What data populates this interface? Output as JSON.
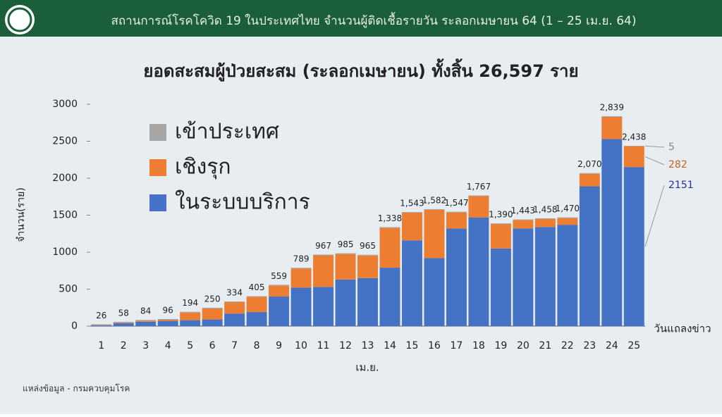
{
  "header": {
    "title": "สถานการณ์โรคโควิด 19 ในประเทศไทย จำนวนผู้ติดเชื้อรายวัน ระลอกเมษายน 64 (1 – 25 เม.ย. 64)"
  },
  "chart_data": {
    "type": "stacked-bar",
    "title": "ยอดสะสมผู้ป่วยสะสม (ระลอกเมษายน) ทั้งสิ้น 26,597 ราย",
    "y_label": "จำนวน(ราย)",
    "x_label": "เม.ย.",
    "x_end_label": "วันแถลงข่าว",
    "categories": [
      "1",
      "2",
      "3",
      "4",
      "5",
      "6",
      "7",
      "8",
      "9",
      "10",
      "11",
      "12",
      "13",
      "14",
      "15",
      "16",
      "17",
      "18",
      "19",
      "20",
      "21",
      "22",
      "23",
      "24",
      "25"
    ],
    "series": [
      {
        "name": "เข้าประเทศ",
        "color": "#a6a6a6",
        "values": [
          10,
          10,
          10,
          10,
          10,
          10,
          10,
          10,
          10,
          10,
          10,
          10,
          10,
          10,
          10,
          10,
          10,
          10,
          10,
          10,
          10,
          10,
          10,
          10,
          5
        ]
      },
      {
        "name": "เชิงรุก",
        "color": "#ed7d31",
        "values": [
          6,
          8,
          14,
          16,
          104,
          150,
          154,
          205,
          149,
          259,
          427,
          345,
          305,
          538,
          373,
          652,
          217,
          287,
          330,
          113,
          108,
          90,
          170,
          299,
          282
        ]
      },
      {
        "name": "ในระบบบริการ",
        "color": "#4472c4",
        "values": [
          10,
          40,
          60,
          70,
          80,
          90,
          170,
          190,
          400,
          520,
          530,
          630,
          650,
          790,
          1160,
          920,
          1320,
          1470,
          1050,
          1320,
          1340,
          1370,
          1890,
          2530,
          2151
        ]
      }
    ],
    "totals": {
      "values": [
        26,
        58,
        84,
        96,
        194,
        250,
        334,
        405,
        559,
        789,
        967,
        985,
        965,
        1338,
        1543,
        1582,
        1547,
        1767,
        1390,
        1443,
        1458,
        1470,
        2070,
        2839,
        2438
      ],
      "value_labels": [
        "26",
        "58",
        "84",
        "96",
        "194",
        "250",
        "334",
        "405",
        "559",
        "789",
        "967",
        "985",
        "965",
        "1,338",
        "1,543",
        "1,582",
        "1,547",
        "1,767",
        "1,390",
        "1,443",
        "1,458",
        "1,470",
        "2,070",
        "2,839",
        "2,438"
      ]
    },
    "ylim": [
      0,
      3000
    ],
    "yticks": [
      0,
      500,
      1000,
      1500,
      2000,
      2500,
      3000
    ],
    "grid": false
  },
  "source": "แหล่งข้อมูล - กรมควบคุมโรค"
}
